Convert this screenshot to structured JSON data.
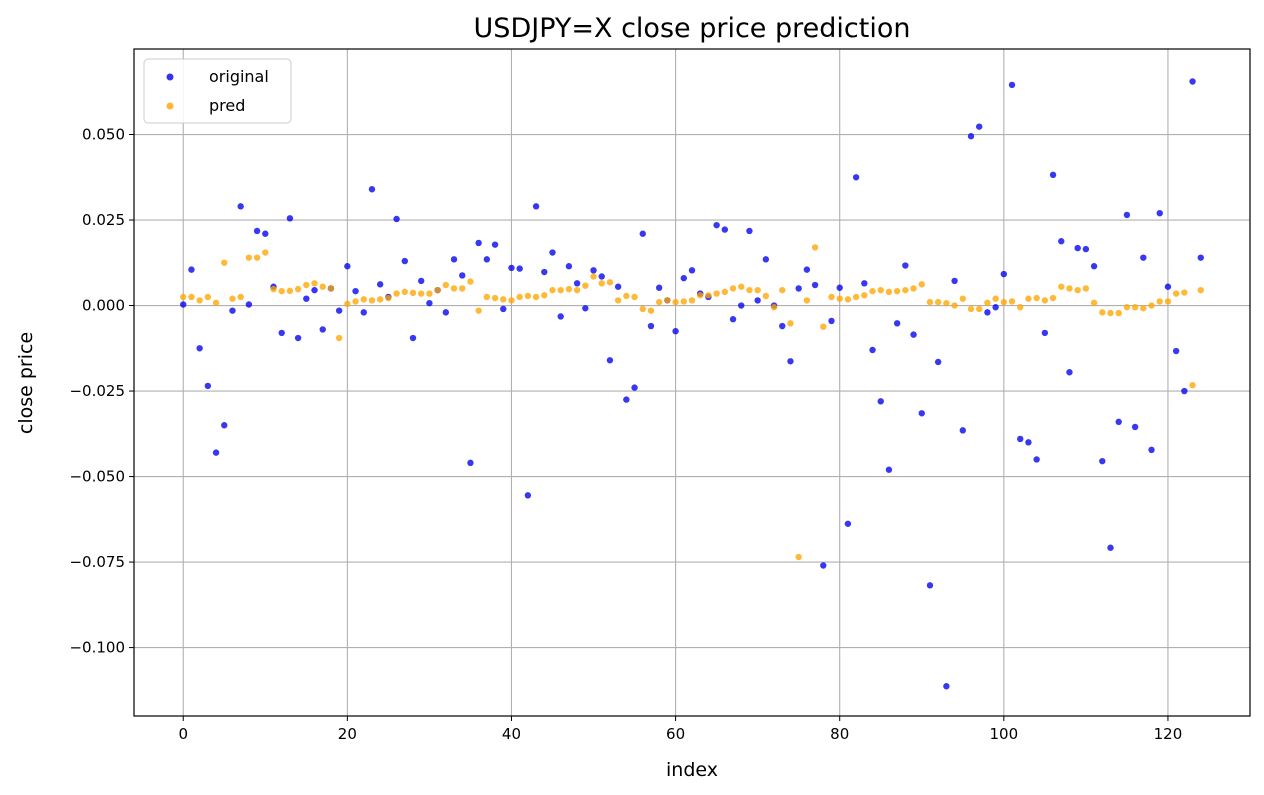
{
  "chart_data": {
    "type": "scatter",
    "title": "USDJPY=X close price prediction",
    "xlabel": "index",
    "ylabel": "close price",
    "xlim": [
      -6,
      130
    ],
    "ylim": [
      -0.12,
      0.075
    ],
    "xticks": [
      0,
      20,
      40,
      60,
      80,
      100,
      120
    ],
    "xtick_labels": [
      "0",
      "20",
      "40",
      "60",
      "80",
      "100",
      "120"
    ],
    "yticks": [
      -0.1,
      -0.075,
      -0.05,
      -0.025,
      0.0,
      0.025,
      0.05
    ],
    "ytick_labels": [
      "−0.100",
      "−0.075",
      "−0.050",
      "−0.025",
      "0.000",
      "0.025",
      "0.050"
    ],
    "grid": true,
    "legend_position": "top-left",
    "series": [
      {
        "name": "original",
        "color": "#0000ee",
        "y": [
          0.0003,
          0.0105,
          -0.0125,
          -0.0235,
          -0.043,
          -0.035,
          -0.0015,
          0.029,
          0.0003,
          0.0218,
          0.021,
          0.0055,
          -0.008,
          0.0255,
          -0.0095,
          0.002,
          0.0045,
          -0.007,
          0.005,
          -0.0015,
          0.0115,
          0.0042,
          -0.002,
          0.034,
          0.0062,
          0.0025,
          0.0253,
          0.013,
          -0.0095,
          0.0072,
          0.0007,
          0.0045,
          -0.002,
          0.0135,
          0.0088,
          -0.046,
          0.0183,
          0.0135,
          0.0178,
          -0.001,
          0.011,
          0.0108,
          -0.0555,
          0.029,
          0.0098,
          0.0155,
          -0.0032,
          0.0115,
          0.0065,
          -0.0008,
          0.0103,
          0.0085,
          -0.016,
          0.0055,
          -0.0275,
          -0.024,
          0.021,
          -0.006,
          0.0052,
          0.0015,
          -0.0075,
          0.008,
          0.0103,
          0.0035,
          0.0025,
          0.0235,
          0.0222,
          -0.004,
          0.0,
          0.0218,
          0.0015,
          0.0135,
          0.0,
          -0.006,
          -0.0163,
          0.005,
          0.0105,
          0.006,
          -0.076,
          -0.0045,
          0.0052,
          -0.0638,
          0.0375,
          0.0065,
          -0.013,
          -0.028,
          -0.048,
          -0.0052,
          0.0117,
          -0.0085,
          -0.0315,
          -0.0818,
          -0.0165,
          -0.1113,
          0.0072,
          -0.0365,
          0.0495,
          0.0523,
          -0.002,
          -0.0005,
          0.0092,
          0.0645,
          -0.039,
          -0.04,
          -0.045,
          -0.008,
          0.0382,
          0.0188,
          -0.0195,
          0.0168,
          0.0165,
          0.0115,
          -0.0455,
          -0.0708,
          -0.034,
          0.0265,
          -0.0355,
          0.014,
          -0.0422,
          0.027,
          0.0055,
          -0.0133,
          -0.025,
          0.0655,
          0.014
        ]
      },
      {
        "name": "pred",
        "color": "#ffa500",
        "y": [
          0.0025,
          0.0025,
          0.0015,
          0.0025,
          0.0008,
          0.0125,
          0.002,
          0.0025,
          0.014,
          0.014,
          0.0155,
          0.0048,
          0.0042,
          0.0043,
          0.0048,
          0.006,
          0.0065,
          0.0055,
          0.005,
          -0.0095,
          0.0005,
          0.0012,
          0.0018,
          0.0015,
          0.0018,
          0.0022,
          0.0035,
          0.004,
          0.0037,
          0.0035,
          0.0035,
          0.0045,
          0.006,
          0.005,
          0.005,
          0.007,
          -0.0015,
          0.0025,
          0.0022,
          0.0018,
          0.0015,
          0.0025,
          0.0028,
          0.0025,
          0.003,
          0.0045,
          0.0045,
          0.0048,
          0.0045,
          0.0058,
          0.0085,
          0.0065,
          0.0068,
          0.0015,
          0.0028,
          0.0025,
          -0.001,
          -0.0015,
          0.001,
          0.0015,
          0.001,
          0.0012,
          0.0015,
          0.003,
          0.003,
          0.0035,
          0.004,
          0.005,
          0.0055,
          0.0045,
          0.0045,
          0.0028,
          -0.0005,
          0.0045,
          -0.0052,
          -0.0735,
          0.0015,
          0.017,
          -0.0062,
          0.0025,
          0.002,
          0.0018,
          0.0025,
          0.003,
          0.0042,
          0.0045,
          0.004,
          0.0042,
          0.0045,
          0.005,
          0.0062,
          0.001,
          0.001,
          0.0007,
          0.0,
          0.002,
          -0.001,
          -0.001,
          0.0008,
          0.002,
          0.001,
          0.0012,
          -0.0005,
          0.002,
          0.0022,
          0.0015,
          0.0022,
          0.0055,
          0.005,
          0.0045,
          0.005,
          0.0008,
          -0.002,
          -0.0022,
          -0.0022,
          -0.0005,
          -0.0005,
          -0.0008,
          0.0,
          0.0012,
          0.0012,
          0.0035,
          0.0038,
          -0.0233,
          0.0045
        ]
      }
    ]
  }
}
